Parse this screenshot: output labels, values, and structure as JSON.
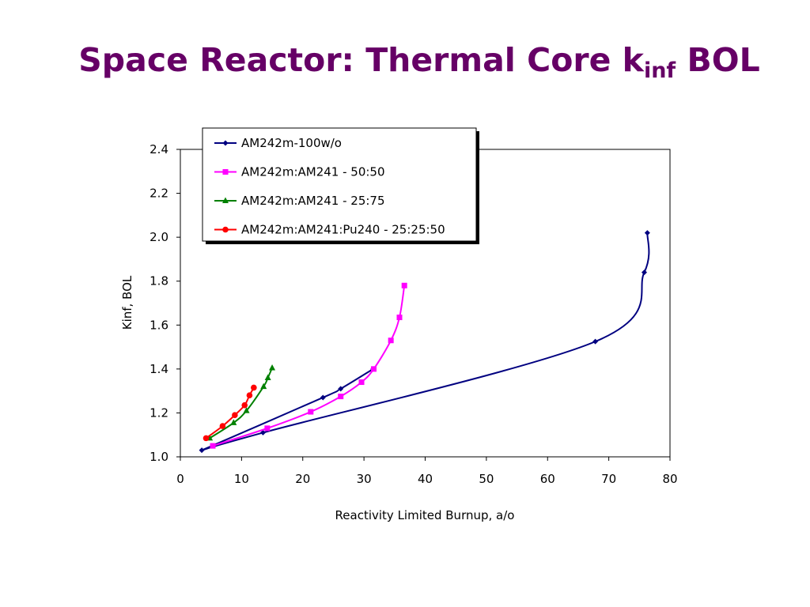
{
  "title": {
    "main": "Space Reactor: Thermal Core k",
    "sub": "inf",
    "suffix": "BOL"
  },
  "colors": {
    "title": "#660066"
  },
  "chart_data": {
    "type": "line",
    "xlabel": "Reactivity Limited Burnup, a/o",
    "ylabel": "Kinf, BOL",
    "xlim": [
      0,
      80
    ],
    "ylim": [
      1.0,
      2.4
    ],
    "x_ticks": [
      0,
      10,
      20,
      30,
      40,
      50,
      60,
      70,
      80
    ],
    "y_ticks": [
      1.0,
      1.2,
      1.4,
      1.6,
      1.8,
      2.0,
      2.2,
      2.4
    ],
    "grid": false,
    "legend_position": "top-left",
    "series": [
      {
        "name": "AM242m-100w/o",
        "color": "#000080",
        "marker": "diamond",
        "points": [
          [
            3.5,
            1.03
          ],
          [
            13.5,
            1.11
          ],
          [
            67.8,
            1.525
          ],
          [
            75.8,
            1.84
          ],
          [
            76.3,
            2.02
          ]
        ],
        "branch": [
          [
            3.5,
            1.03
          ],
          [
            23.3,
            1.27
          ],
          [
            26.2,
            1.31
          ],
          [
            31.5,
            1.4
          ]
        ]
      },
      {
        "name": "AM242m:AM241 - 50:50",
        "color": "#FF00FF",
        "marker": "square",
        "points": [
          [
            5.3,
            1.05
          ],
          [
            14.2,
            1.13
          ],
          [
            21.3,
            1.205
          ],
          [
            26.2,
            1.275
          ],
          [
            29.6,
            1.34
          ],
          [
            31.6,
            1.4
          ],
          [
            34.4,
            1.53
          ],
          [
            35.8,
            1.635
          ],
          [
            36.6,
            1.78
          ]
        ]
      },
      {
        "name": "AM242m:AM241 - 25:75",
        "color": "#008000",
        "marker": "triangle",
        "points": [
          [
            4.8,
            1.085
          ],
          [
            8.7,
            1.155
          ],
          [
            10.8,
            1.21
          ],
          [
            13.6,
            1.32
          ],
          [
            14.3,
            1.36
          ],
          [
            15.0,
            1.405
          ]
        ]
      },
      {
        "name": "AM242m:AM241:Pu240 - 25:25:50",
        "color": "#FF0000",
        "marker": "circle",
        "points": [
          [
            4.2,
            1.085
          ],
          [
            6.9,
            1.14
          ],
          [
            8.9,
            1.19
          ],
          [
            10.5,
            1.235
          ],
          [
            11.3,
            1.28
          ],
          [
            12.0,
            1.315
          ]
        ]
      }
    ]
  }
}
